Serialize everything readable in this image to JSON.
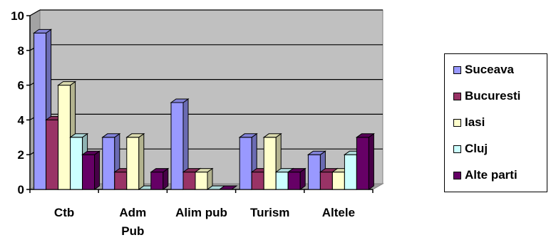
{
  "chart_data": {
    "type": "bar",
    "style": "3d-clustered-column",
    "categories": [
      "Ctb",
      "Adm Pub",
      "Alim pub",
      "Turism",
      "Altele"
    ],
    "series": [
      {
        "name": "Suceava",
        "values": [
          9,
          3,
          5,
          3,
          2
        ],
        "color": "#9999FF"
      },
      {
        "name": "Bucuresti",
        "values": [
          4,
          1,
          1,
          1,
          1
        ],
        "color": "#993366"
      },
      {
        "name": "Iasi",
        "values": [
          6,
          3,
          1,
          3,
          1
        ],
        "color": "#FFFFCC"
      },
      {
        "name": "Cluj",
        "values": [
          3,
          0,
          0,
          1,
          2
        ],
        "color": "#CCFFFF"
      },
      {
        "name": "Alte parti",
        "values": [
          2,
          1,
          0,
          1,
          3
        ],
        "color": "#660066"
      }
    ],
    "ylim": [
      0,
      10
    ],
    "yticks": [
      0,
      2,
      4,
      6,
      8,
      10
    ],
    "grid": true,
    "plot_background": "#C0C0C0",
    "legend_position": "right"
  }
}
